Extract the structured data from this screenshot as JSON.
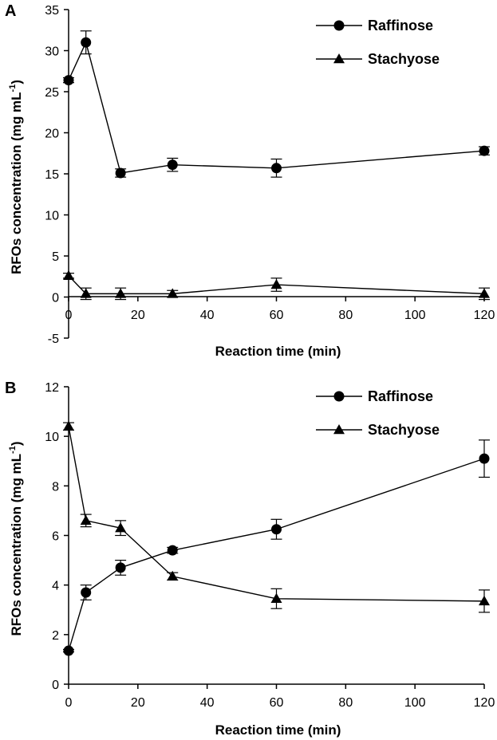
{
  "chart_data": [
    {
      "type": "line",
      "panel_label": "A",
      "xlabel": "Reaction time (min)",
      "ylabel_main": "RFOs concentration (mg mL",
      "ylabel_sup": "-1",
      "ylabel_close": ")",
      "x": [
        0,
        5,
        15,
        30,
        60,
        120
      ],
      "xlim": [
        0,
        120
      ],
      "xticks": [
        0,
        20,
        40,
        60,
        80,
        100,
        120
      ],
      "ylim": [
        -5,
        35
      ],
      "yticks": [
        -5,
        0,
        5,
        10,
        15,
        20,
        25,
        30,
        35
      ],
      "grid": false,
      "legend_position": "top-right",
      "series": [
        {
          "name": "Raffinose",
          "marker": "circle",
          "values": [
            26.4,
            31.0,
            15.1,
            16.1,
            15.7,
            17.8
          ],
          "errors": [
            0.3,
            1.4,
            0.5,
            0.8,
            1.1,
            0.5
          ]
        },
        {
          "name": "Stachyose",
          "marker": "triangle",
          "values": [
            2.6,
            0.4,
            0.4,
            0.4,
            1.5,
            0.4
          ],
          "errors": [
            0.3,
            0.7,
            0.7,
            0.4,
            0.8,
            0.7
          ]
        }
      ]
    },
    {
      "type": "line",
      "panel_label": "B",
      "xlabel": "Reaction time (min)",
      "ylabel_main": "RFOs concentration (mg mL",
      "ylabel_sup": "-1",
      "ylabel_close": ")",
      "x": [
        0,
        5,
        15,
        30,
        60,
        120
      ],
      "xlim": [
        0,
        120
      ],
      "xticks": [
        0,
        20,
        40,
        60,
        80,
        100,
        120
      ],
      "ylim": [
        0,
        12
      ],
      "yticks": [
        0,
        2,
        4,
        6,
        8,
        10,
        12
      ],
      "grid": false,
      "legend_position": "top-right",
      "series": [
        {
          "name": "Raffinose",
          "marker": "circle",
          "values": [
            1.35,
            3.7,
            4.7,
            5.4,
            6.25,
            9.1
          ],
          "errors": [
            0.05,
            0.3,
            0.3,
            0.12,
            0.4,
            0.75
          ]
        },
        {
          "name": "Stachyose",
          "marker": "triangle",
          "values": [
            10.4,
            6.6,
            6.3,
            4.35,
            3.45,
            3.35
          ],
          "errors": [
            0.15,
            0.25,
            0.3,
            0.15,
            0.4,
            0.45
          ]
        }
      ]
    }
  ]
}
